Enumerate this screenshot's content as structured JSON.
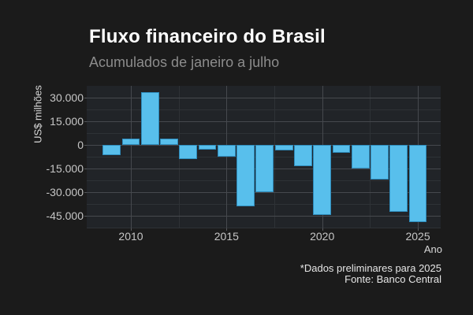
{
  "chart": {
    "title": "Fluxo financeiro do Brasil",
    "subtitle": "Acumulados de janeiro a julho",
    "y_axis_title": "US$ milhões",
    "x_axis_title": "Ano",
    "caption_line1": "*Dados preliminares para 2025",
    "caption_line2": "Fonte: Banco Central"
  },
  "chart_data": {
    "type": "bar",
    "title": "Fluxo financeiro do Brasil",
    "subtitle": "Acumulados de janeiro a julho",
    "xlabel": "Ano",
    "ylabel": "US$ milhões",
    "categories": [
      2009,
      2010,
      2011,
      2012,
      2013,
      2014,
      2015,
      2016,
      2017,
      2018,
      2019,
      2020,
      2021,
      2022,
      2023,
      2024,
      2025
    ],
    "values": [
      -6500,
      4000,
      33500,
      4000,
      -9000,
      -3000,
      -7500,
      -39000,
      -30000,
      -3500,
      -13500,
      -44500,
      -5000,
      -15000,
      -22000,
      -42500,
      -49000
    ],
    "x_ticks": [
      2010,
      2015,
      2020,
      2025
    ],
    "y_ticks": [
      30000,
      15000,
      0,
      -15000,
      -30000,
      -45000
    ],
    "y_tick_labels": [
      "30.000",
      "15.000",
      "0",
      "-15.000",
      "-30.000",
      "-45.000"
    ],
    "x_tick_labels": [
      "2010",
      "2015",
      "2020",
      "2025"
    ],
    "ylim": [
      -52500,
      37500
    ],
    "xlim": [
      2008.2,
      2026.5
    ],
    "grid": true,
    "legend": false,
    "bar_color": "#58BFEC",
    "bar_border_color": "#2E8BBB",
    "background_color": "#1B1B1B",
    "panel_color": "#212428",
    "note": "*Dados preliminares para 2025",
    "source": "Fonte: Banco Central"
  }
}
